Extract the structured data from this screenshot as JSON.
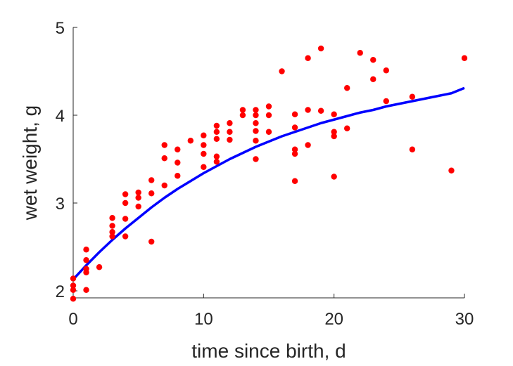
{
  "chart_data": {
    "type": "scatter",
    "xlabel": "time since birth, d",
    "ylabel": "wet weight, g",
    "xlim": [
      0,
      30
    ],
    "ylim": [
      1.92,
      5
    ],
    "xticks": [
      "0",
      "10",
      "20",
      "30"
    ],
    "yticks": [
      "2",
      "3",
      "4",
      "5"
    ],
    "grid": false,
    "series": [
      {
        "kind": "points",
        "color": "#ff0000",
        "points": [
          [
            0,
            1.91
          ],
          [
            0,
            2.01
          ],
          [
            0,
            2.06
          ],
          [
            0,
            2.14
          ],
          [
            1,
            2.01
          ],
          [
            1,
            2.21
          ],
          [
            1,
            2.25
          ],
          [
            1,
            2.35
          ],
          [
            1,
            2.47
          ],
          [
            2,
            2.27
          ],
          [
            3,
            2.62
          ],
          [
            3,
            2.67
          ],
          [
            3,
            2.74
          ],
          [
            3,
            2.83
          ],
          [
            4,
            2.62
          ],
          [
            4,
            2.82
          ],
          [
            4,
            3.0
          ],
          [
            4,
            3.1
          ],
          [
            5,
            2.96
          ],
          [
            5,
            3.06
          ],
          [
            5,
            3.12
          ],
          [
            6,
            2.56
          ],
          [
            6,
            3.11
          ],
          [
            6,
            3.26
          ],
          [
            7,
            3.2
          ],
          [
            7,
            3.51
          ],
          [
            7,
            3.66
          ],
          [
            8,
            3.31
          ],
          [
            8,
            3.46
          ],
          [
            8,
            3.61
          ],
          [
            9,
            3.71
          ],
          [
            10,
            3.41
          ],
          [
            10,
            3.56
          ],
          [
            10,
            3.66
          ],
          [
            10,
            3.77
          ],
          [
            11,
            3.47
          ],
          [
            11,
            3.53
          ],
          [
            11,
            3.73
          ],
          [
            11,
            3.81
          ],
          [
            11,
            3.88
          ],
          [
            12,
            3.72
          ],
          [
            12,
            3.81
          ],
          [
            12,
            3.91
          ],
          [
            13,
            4.0
          ],
          [
            13,
            4.06
          ],
          [
            14,
            3.5
          ],
          [
            14,
            3.71
          ],
          [
            14,
            3.82
          ],
          [
            14,
            3.91
          ],
          [
            14,
            4.0
          ],
          [
            14,
            4.06
          ],
          [
            15,
            3.81
          ],
          [
            15,
            4.0
          ],
          [
            15,
            4.1
          ],
          [
            16,
            4.5
          ],
          [
            17,
            3.25
          ],
          [
            17,
            3.56
          ],
          [
            17,
            3.61
          ],
          [
            17,
            3.86
          ],
          [
            17,
            4.01
          ],
          [
            18,
            3.66
          ],
          [
            18,
            4.06
          ],
          [
            18,
            4.65
          ],
          [
            19,
            4.05
          ],
          [
            19,
            4.76
          ],
          [
            20,
            3.3
          ],
          [
            20,
            3.76
          ],
          [
            20,
            3.81
          ],
          [
            20,
            4.01
          ],
          [
            21,
            3.85
          ],
          [
            21,
            4.31
          ],
          [
            22,
            4.71
          ],
          [
            23,
            4.41
          ],
          [
            23,
            4.63
          ],
          [
            24,
            4.16
          ],
          [
            24,
            4.51
          ],
          [
            26,
            3.61
          ],
          [
            26,
            4.21
          ],
          [
            29,
            3.37
          ],
          [
            30,
            4.65
          ]
        ]
      },
      {
        "kind": "line",
        "color": "#0000ff",
        "points": [
          [
            0,
            2.13
          ],
          [
            1,
            2.29
          ],
          [
            2,
            2.44
          ],
          [
            3,
            2.58
          ],
          [
            4,
            2.71
          ],
          [
            5,
            2.83
          ],
          [
            6,
            2.95
          ],
          [
            7,
            3.06
          ],
          [
            8,
            3.16
          ],
          [
            9,
            3.25
          ],
          [
            10,
            3.34
          ],
          [
            11,
            3.42
          ],
          [
            12,
            3.5
          ],
          [
            13,
            3.57
          ],
          [
            14,
            3.64
          ],
          [
            15,
            3.7
          ],
          [
            16,
            3.76
          ],
          [
            17,
            3.81
          ],
          [
            18,
            3.86
          ],
          [
            19,
            3.91
          ],
          [
            20,
            3.95
          ],
          [
            21,
            3.99
          ],
          [
            22,
            4.03
          ],
          [
            23,
            4.06
          ],
          [
            24,
            4.1
          ],
          [
            25,
            4.13
          ],
          [
            26,
            4.16
          ],
          [
            27,
            4.19
          ],
          [
            28,
            4.22
          ],
          [
            29,
            4.25
          ],
          [
            30,
            4.31
          ]
        ]
      }
    ]
  }
}
